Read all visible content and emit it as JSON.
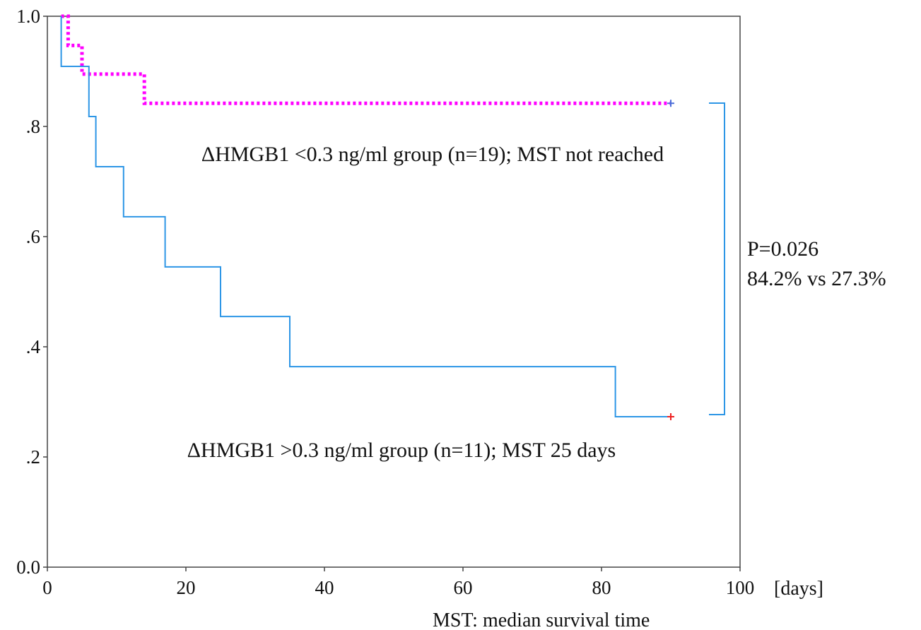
{
  "chart_data": {
    "type": "line",
    "chart_kind": "kaplan-meier step",
    "title": "",
    "xlabel": "",
    "ylabel": "",
    "x_unit": "[days]",
    "xlim": [
      0,
      100
    ],
    "ylim": [
      0,
      1
    ],
    "x_ticks": [
      {
        "value": 0,
        "label": "0"
      },
      {
        "value": 20,
        "label": "20"
      },
      {
        "value": 40,
        "label": "40"
      },
      {
        "value": 60,
        "label": "60"
      },
      {
        "value": 80,
        "label": "80"
      },
      {
        "value": 100,
        "label": "100"
      }
    ],
    "y_ticks": [
      {
        "value": 0.0,
        "label": "0.0"
      },
      {
        "value": 0.2,
        "label": ".2"
      },
      {
        "value": 0.4,
        "label": ".4"
      },
      {
        "value": 0.6,
        "label": ".6"
      },
      {
        "value": 0.8,
        "label": ".8"
      },
      {
        "value": 1.0,
        "label": "1.0"
      }
    ],
    "grid": false,
    "legend": "none",
    "series": [
      {
        "label": "ΔHMGB1 <0.3 ng/ml group (n=19); MST not reached",
        "color": "#ff00ff",
        "style": "dotted",
        "steps": [
          [
            2,
            1.0
          ],
          [
            3,
            0.947
          ],
          [
            5,
            0.895
          ],
          [
            14,
            0.842
          ]
        ],
        "end": 90,
        "censor": [
          90,
          0.842
        ],
        "censor_color": "#4a6fd8"
      },
      {
        "label": "ΔHMGB1 >0.3 ng/ml group (n=11); MST 25 days",
        "color": "#2d96e6",
        "style": "solid",
        "steps": [
          [
            2,
            1.0
          ],
          [
            2,
            0.909
          ],
          [
            6,
            0.818
          ],
          [
            7,
            0.727
          ],
          [
            11,
            0.636
          ],
          [
            17,
            0.545
          ],
          [
            25,
            0.455
          ],
          [
            35,
            0.364
          ],
          [
            82,
            0.273
          ]
        ],
        "end": 90,
        "censor": [
          90,
          0.273
        ],
        "censor_color": "#ee2222"
      }
    ],
    "annotations": {
      "p_value": "P=0.026",
      "comparison": "84.2% vs 27.3%",
      "footnote": "MST: median survival time"
    }
  }
}
